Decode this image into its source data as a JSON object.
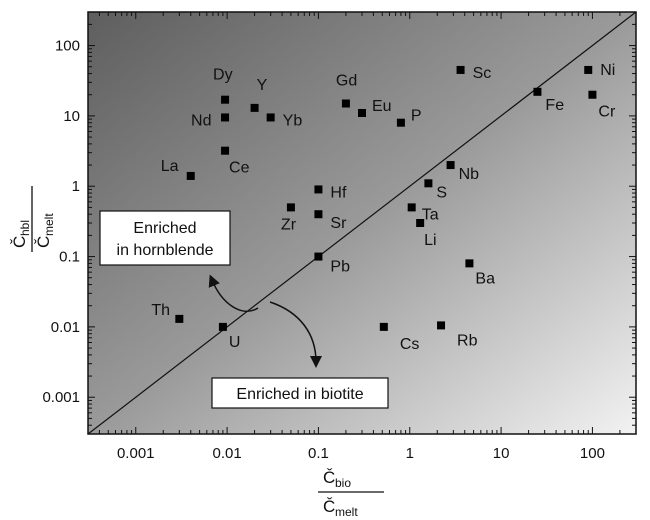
{
  "chart_data": {
    "type": "scatter",
    "scale": "log-log",
    "xlim": [
      0.0003,
      300
    ],
    "ylim": [
      0.0003,
      300
    ],
    "x_ticks": [
      0.001,
      0.01,
      0.1,
      1,
      10,
      100
    ],
    "x_tick_labels": [
      "0.001",
      "0.01",
      "0.1",
      "1",
      "10",
      "100"
    ],
    "y_ticks": [
      0.001,
      0.01,
      0.1,
      1,
      10,
      100
    ],
    "y_tick_labels": [
      "0.001",
      "0.01",
      "0.1",
      "1",
      "10",
      "100"
    ],
    "xlabel": {
      "numerator": "Č",
      "numerator_sub": "bio",
      "denominator": "Č",
      "denominator_sub": "melt"
    },
    "ylabel": {
      "numerator": "Č",
      "numerator_sub": "hbl",
      "denominator": "Č",
      "denominator_sub": "melt"
    },
    "reference_line": "1:1",
    "points": [
      {
        "label": "Dy",
        "x": 0.0095,
        "y": 17,
        "label_dx": -12,
        "label_dy": -20
      },
      {
        "label": "Y",
        "x": 0.02,
        "y": 13,
        "label_dx": 2,
        "label_dy": -18
      },
      {
        "label": "Nd",
        "x": 0.0095,
        "y": 9.5,
        "label_dx": -34,
        "label_dy": 8
      },
      {
        "label": "Yb",
        "x": 0.03,
        "y": 9.5,
        "label_dx": 12,
        "label_dy": 8
      },
      {
        "label": "Ce",
        "x": 0.0095,
        "y": 3.2,
        "label_dx": 4,
        "label_dy": 22
      },
      {
        "label": "La",
        "x": 0.004,
        "y": 1.4,
        "label_dx": -30,
        "label_dy": -5
      },
      {
        "label": "Gd",
        "x": 0.2,
        "y": 15,
        "label_dx": -10,
        "label_dy": -18
      },
      {
        "label": "Eu",
        "x": 0.3,
        "y": 11,
        "label_dx": 10,
        "label_dy": -2
      },
      {
        "label": "P",
        "x": 0.8,
        "y": 8,
        "label_dx": 10,
        "label_dy": -2
      },
      {
        "label": "Sc",
        "x": 3.6,
        "y": 45,
        "label_dx": 12,
        "label_dy": 8
      },
      {
        "label": "Fe",
        "x": 25,
        "y": 22,
        "label_dx": 8,
        "label_dy": 18
      },
      {
        "label": "Ni",
        "x": 90,
        "y": 45,
        "label_dx": 12,
        "label_dy": 5
      },
      {
        "label": "Cr",
        "x": 100,
        "y": 20,
        "label_dx": 6,
        "label_dy": 22
      },
      {
        "label": "Hf",
        "x": 0.1,
        "y": 0.9,
        "label_dx": 12,
        "label_dy": 8
      },
      {
        "label": "Zr",
        "x": 0.05,
        "y": 0.5,
        "label_dx": -10,
        "label_dy": 22
      },
      {
        "label": "Sr",
        "x": 0.1,
        "y": 0.4,
        "label_dx": 12,
        "label_dy": 14
      },
      {
        "label": "Pb",
        "x": 0.1,
        "y": 0.1,
        "label_dx": 12,
        "label_dy": 15
      },
      {
        "label": "Nb",
        "x": 2.8,
        "y": 2,
        "label_dx": 8,
        "label_dy": 14
      },
      {
        "label": "S",
        "x": 1.6,
        "y": 1.1,
        "label_dx": 8,
        "label_dy": 14
      },
      {
        "label": "Ta",
        "x": 1.05,
        "y": 0.5,
        "label_dx": 10,
        "label_dy": 12
      },
      {
        "label": "Li",
        "x": 1.3,
        "y": 0.3,
        "label_dx": 4,
        "label_dy": 22
      },
      {
        "label": "Ba",
        "x": 4.5,
        "y": 0.08,
        "label_dx": 6,
        "label_dy": 20
      },
      {
        "label": "Th",
        "x": 0.003,
        "y": 0.013,
        "label_dx": -28,
        "label_dy": -4
      },
      {
        "label": "U",
        "x": 0.009,
        "y": 0.01,
        "label_dx": 6,
        "label_dy": 20
      },
      {
        "label": "Cs",
        "x": 0.52,
        "y": 0.01,
        "label_dx": 16,
        "label_dy": 22
      },
      {
        "label": "Rb",
        "x": 2.2,
        "y": 0.0105,
        "label_dx": 16,
        "label_dy": 20
      }
    ],
    "annotations": [
      {
        "lines": [
          "Enriched",
          "in hornblende"
        ]
      },
      {
        "lines": [
          "Enriched in biotite"
        ]
      }
    ]
  }
}
